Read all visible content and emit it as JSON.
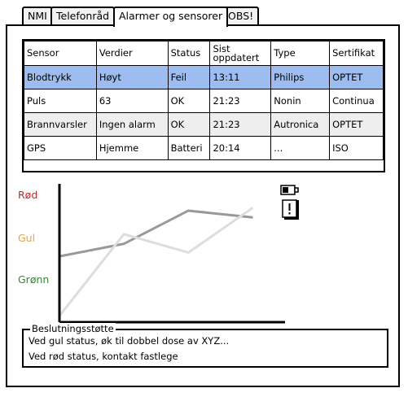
{
  "tabs": [
    {
      "label": "NMI",
      "active": false
    },
    {
      "label": "Telefonråd",
      "active": false
    },
    {
      "label": "Alarmer og sensorer",
      "active": true
    },
    {
      "label": "OBS!",
      "active": false
    }
  ],
  "table": {
    "headers": [
      "Sensor",
      "Verdier",
      "Status",
      "Sist oppdatert",
      "Type",
      "Sertifikat"
    ],
    "rows": [
      [
        "Blodtrykk",
        "Høyt",
        "Feil",
        "13:11",
        "Philips",
        "OPTET"
      ],
      [
        "Puls",
        "63",
        "OK",
        "21:23",
        "Nonin",
        "Continua"
      ],
      [
        "Brannvarsler",
        "Ingen alarm",
        "OK",
        "21:23",
        "Autronica",
        "OPTET"
      ],
      [
        "GPS",
        "Hjemme",
        "Batteri",
        "20:14",
        "...",
        "ISO"
      ]
    ],
    "selected_row_color": "#9dbcf0"
  },
  "chart_data": {
    "type": "line",
    "y_categories": [
      "Grønn",
      "Gul",
      "Rød"
    ],
    "y_category_colors": {
      "Rød": "#c0282d",
      "Gul": "#e8a33b",
      "Grønn": "#2e8b2e"
    },
    "series": [
      {
        "color": "#999999",
        "points": [
          [
            0,
            0.62
          ],
          [
            1,
            0.92
          ],
          [
            2,
            1.71
          ],
          [
            3,
            1.55
          ]
        ]
      },
      {
        "color": "#dddddd",
        "points": [
          [
            0,
            -0.8
          ],
          [
            1,
            1.15
          ],
          [
            2,
            0.71
          ],
          [
            3,
            1.78
          ]
        ]
      }
    ],
    "x_range": [
      0,
      3.5
    ],
    "y_range": [
      -0.95,
      2.35
    ],
    "grid": false,
    "legend": "none"
  },
  "icons": {
    "battery": "battery-low-icon",
    "alert": "exclamation-alert-icon"
  },
  "decision": {
    "legend": "Beslutningsstøtte",
    "lines": [
      "Ved gul status, øk til dobbel dose av XYZ...",
      "Ved rød status, kontakt fastlege"
    ]
  }
}
